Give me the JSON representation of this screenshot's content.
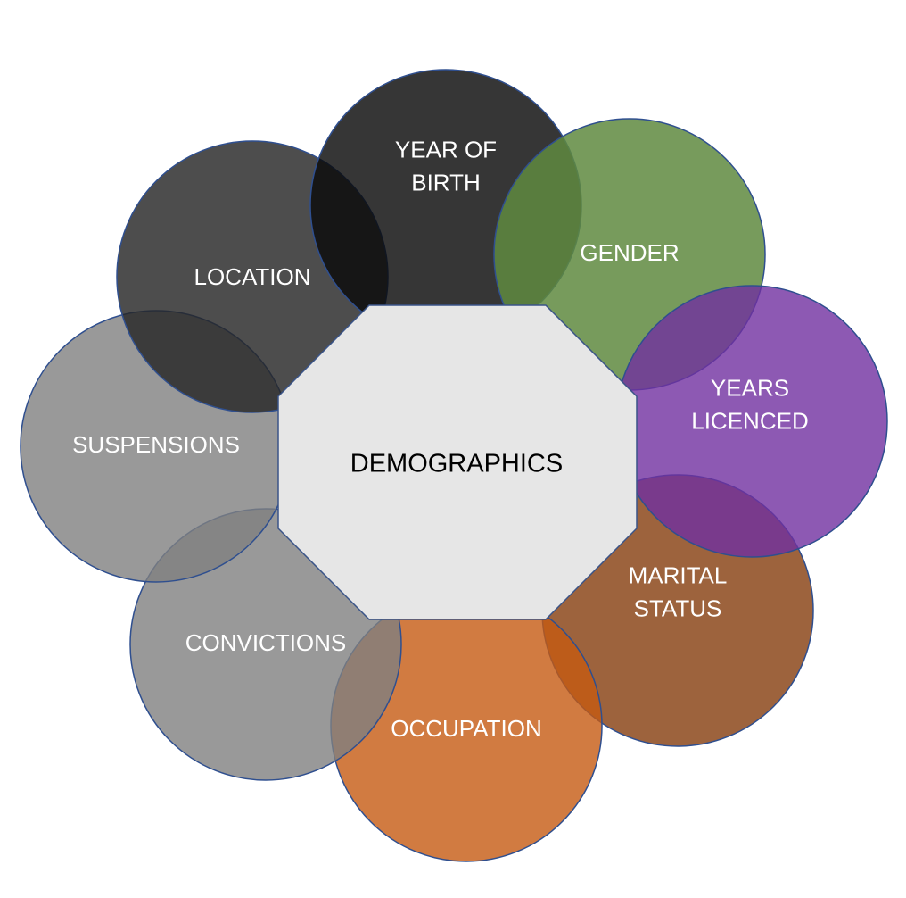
{
  "center": {
    "label": "DEMOGRAPHICS",
    "fill": "#e6e6e6",
    "stroke": "#3a5488"
  },
  "petals": [
    {
      "id": "year-of-birth",
      "lines": [
        "YEAR OF",
        "BIRTH"
      ],
      "fill": "#0a0a0a",
      "opacity": 0.82
    },
    {
      "id": "gender",
      "lines": [
        "GENDER"
      ],
      "fill": "#5f8a3f",
      "opacity": 0.85
    },
    {
      "id": "years-licenced",
      "lines": [
        "YEARS",
        "LICENCED"
      ],
      "fill": "#7030a0",
      "opacity": 0.8
    },
    {
      "id": "marital-status",
      "lines": [
        "MARITAL",
        "STATUS"
      ],
      "fill": "#843c0c",
      "opacity": 0.8
    },
    {
      "id": "occupation",
      "lines": [
        "OCCUPATION"
      ],
      "fill": "#c55a11",
      "opacity": 0.8
    },
    {
      "id": "convictions",
      "lines": [
        "CONVICTIONS"
      ],
      "fill": "#7f7f7f",
      "opacity": 0.8
    },
    {
      "id": "suspensions",
      "lines": [
        "SUSPENSIONS"
      ],
      "fill": "#7f7f7f",
      "opacity": 0.8
    },
    {
      "id": "location",
      "lines": [
        "LOCATION"
      ],
      "fill": "#262626",
      "opacity": 0.82
    }
  ],
  "petal_stroke": "#2f4f8f"
}
